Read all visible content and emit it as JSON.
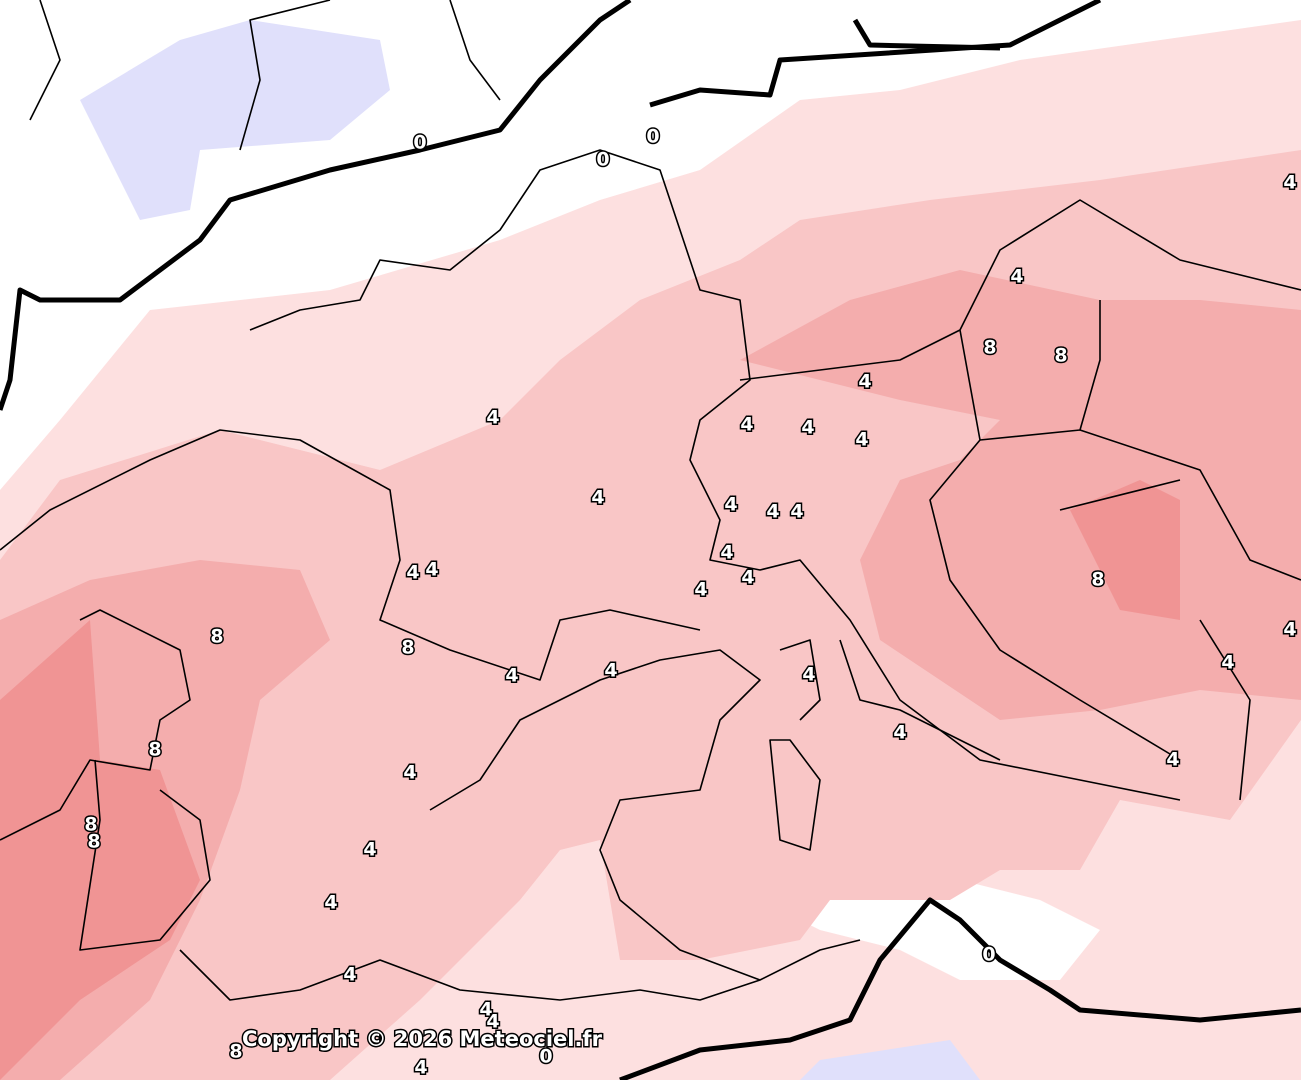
{
  "map": {
    "contour_labels": [
      0,
      0,
      0,
      0,
      0,
      4,
      4,
      4,
      4,
      4,
      4,
      4,
      4,
      4,
      4,
      4,
      4,
      4,
      4,
      4,
      4,
      4,
      4,
      4,
      4,
      4,
      4,
      4,
      4,
      4,
      4,
      4,
      4,
      4,
      4,
      8,
      8,
      8,
      8,
      8,
      8,
      8,
      8,
      8
    ],
    "copyright": "Copyright © 2026 Meteociel.fr"
  }
}
